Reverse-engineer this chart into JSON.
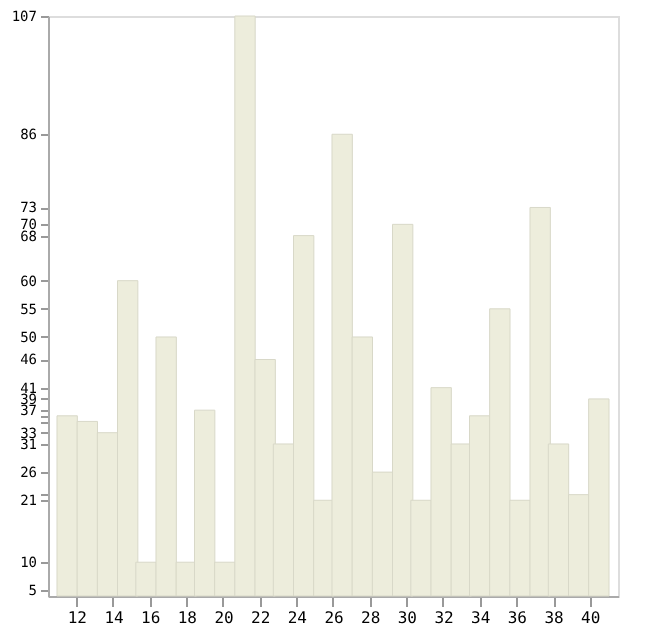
{
  "chart_data": {
    "type": "bar",
    "color": "#ededdc",
    "x": [
      11.5,
      12.6,
      13.7,
      14.8,
      15.8,
      16.9,
      18.0,
      19.0,
      20.1,
      21.2,
      22.3,
      23.3,
      24.4,
      25.5,
      26.5,
      27.6,
      28.7,
      29.8,
      30.8,
      31.9,
      33.0,
      34.0,
      35.1,
      36.2,
      37.3,
      38.3,
      39.4,
      40.5
    ],
    "values": [
      36,
      35,
      33,
      60,
      10,
      50,
      10,
      37,
      10,
      107,
      46,
      31,
      68,
      21,
      86,
      50,
      26,
      70,
      21,
      41,
      31,
      36,
      55,
      21,
      73,
      31,
      22,
      39
    ],
    "xlim": [
      11,
      41
    ],
    "xticks": [
      12,
      14,
      16,
      18,
      20,
      22,
      24,
      26,
      28,
      30,
      32,
      34,
      36,
      38,
      40
    ],
    "ylim": [
      4,
      107
    ],
    "yticks": [
      5,
      10,
      21,
      {
        "value": 22,
        "label": null
      },
      26,
      31,
      33,
      {
        "value": 35,
        "label": null
      },
      {
        "value": 36,
        "label": null
      },
      37,
      39,
      41,
      46,
      50,
      55,
      60,
      68,
      70,
      73,
      86,
      107
    ],
    "grid": false
  }
}
